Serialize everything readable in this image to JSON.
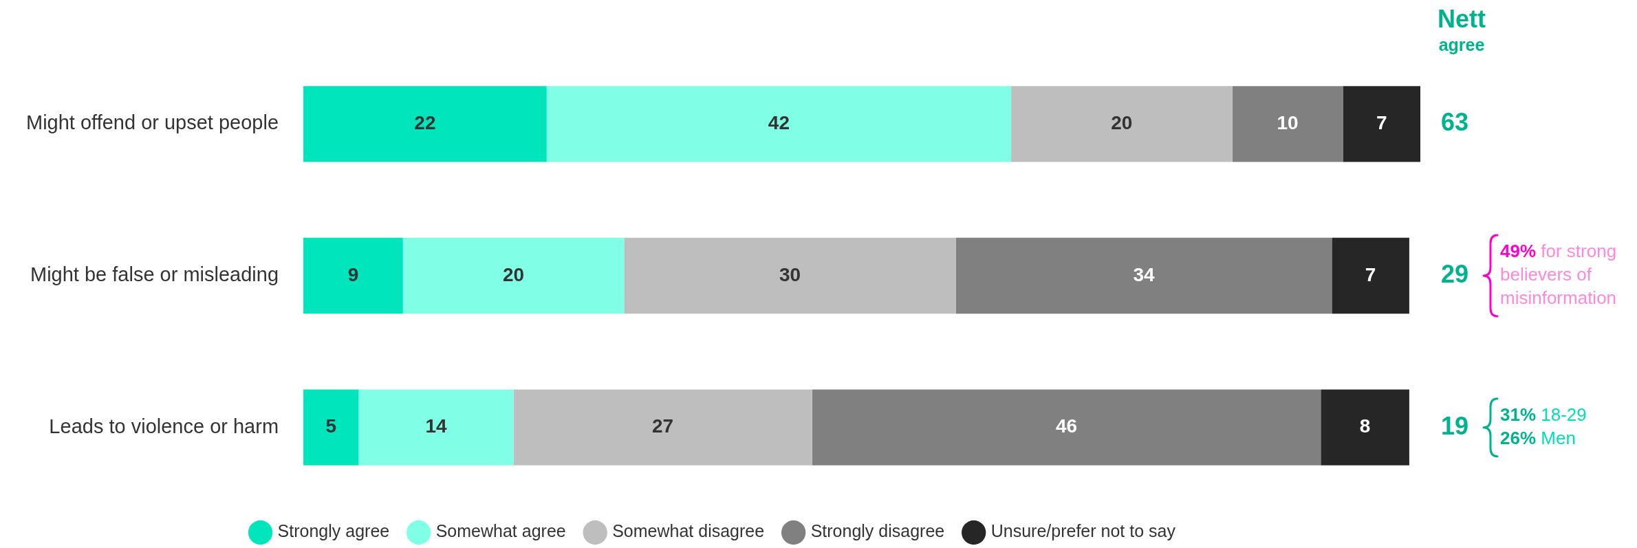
{
  "chart_data": {
    "type": "bar",
    "orientation": "horizontal",
    "stacked": true,
    "tick_labels": "y",
    "xlim": [
      0,
      101
    ],
    "legend": "bottom",
    "data_labels": true,
    "categories": [
      "Might offend or upset people",
      "Might be false or misleading",
      "Leads to violence or harm"
    ],
    "series": [
      {
        "name": "Strongly agree",
        "color": "#00e5bc",
        "values": [
          22,
          9,
          5
        ]
      },
      {
        "name": "Somewhat agree",
        "color": "#80ffe6",
        "values": [
          42,
          20,
          14
        ]
      },
      {
        "name": "Somewhat disagree",
        "color": "#bebebe",
        "values": [
          20,
          30,
          27
        ]
      },
      {
        "name": "Strongly disagree",
        "color": "#808080",
        "values": [
          10,
          34,
          46
        ]
      },
      {
        "name": "Unsure/prefer not to say",
        "color": "#262626",
        "values": [
          7,
          7,
          8
        ]
      }
    ],
    "annotations": [
      "Nett agree",
      "63",
      "29",
      "19",
      "49% for strong believers of misinformation",
      "31% 18-29\n26% Men"
    ]
  }
}
